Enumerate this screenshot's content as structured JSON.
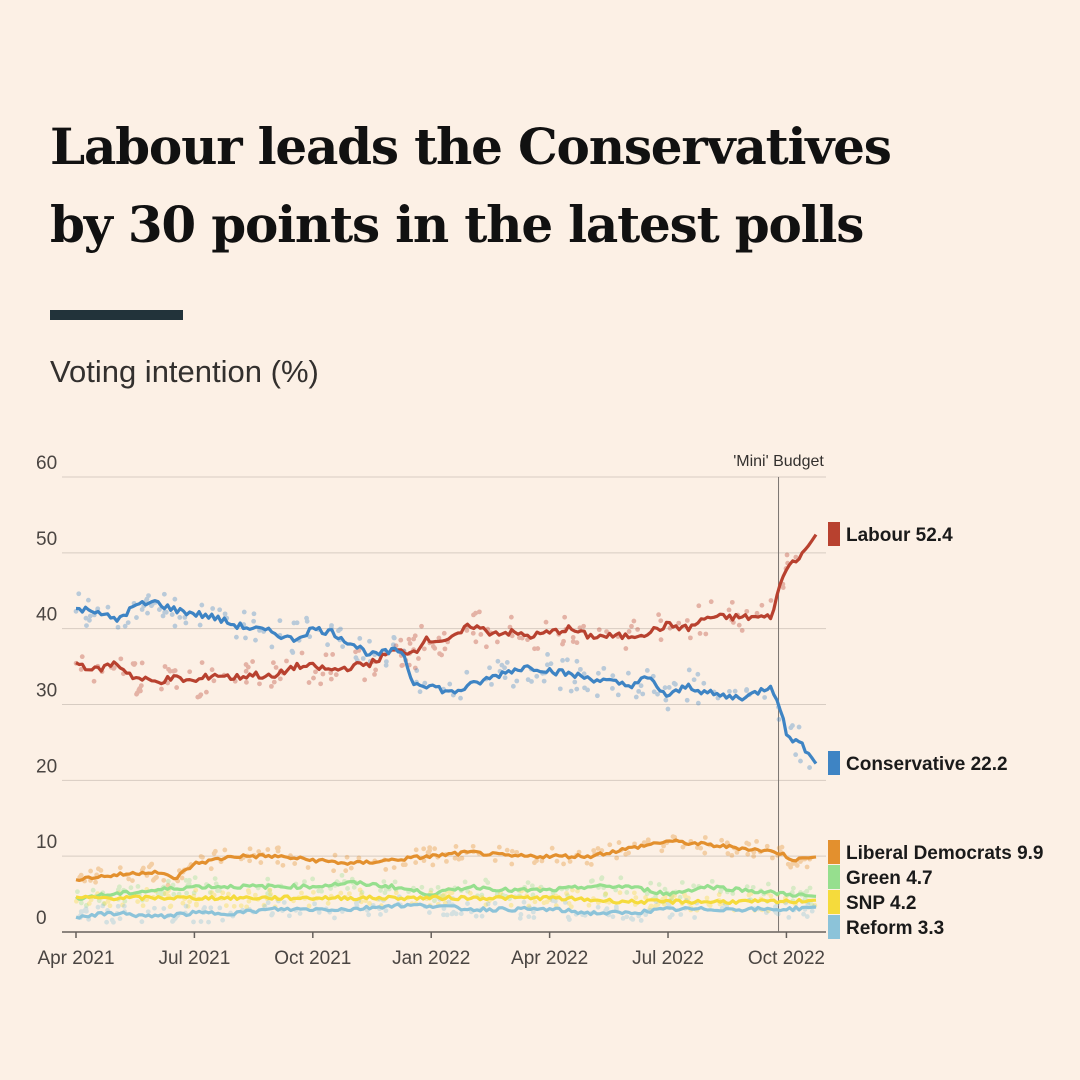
{
  "headline": {
    "line1": "Labour leads the Conservatives",
    "line2": "by 30 points in the latest polls"
  },
  "subtitle": "Voting intention (%)",
  "chart_data": {
    "type": "line",
    "title": "Labour leads the Conservatives by 30 points in the latest polls",
    "ylabel": "Voting intention (%)",
    "xlabel": "",
    "ylim": [
      0,
      60
    ],
    "yticks": [
      0,
      10,
      20,
      30,
      40,
      50,
      60
    ],
    "xlim": [
      0,
      18.8
    ],
    "xticks": [
      {
        "label": "Apr 2021",
        "x": 0
      },
      {
        "label": "Jul 2021",
        "x": 3
      },
      {
        "label": "Oct 2021",
        "x": 6
      },
      {
        "label": "Jan 2022",
        "x": 9
      },
      {
        "label": "Apr 2022",
        "x": 12
      },
      {
        "label": "Jul 2022",
        "x": 15
      },
      {
        "label": "Oct 2022",
        "x": 18
      }
    ],
    "grid": true,
    "annotations": [
      {
        "label": "'Mini' Budget",
        "x": 17.8
      }
    ],
    "x_unit": "months since Apr 2021",
    "series": [
      {
        "name": "Labour",
        "latest": 52.4,
        "label": "Labour 52.4",
        "color": "#b8412f",
        "points": [
          [
            0,
            35.5
          ],
          [
            0.5,
            34.5
          ],
          [
            1,
            35.5
          ],
          [
            1.5,
            33.5
          ],
          [
            2,
            33
          ],
          [
            2.5,
            33.5
          ],
          [
            3,
            33
          ],
          [
            3.5,
            34
          ],
          [
            4,
            33.5
          ],
          [
            4.5,
            34
          ],
          [
            5,
            33.5
          ],
          [
            5.5,
            35
          ],
          [
            6,
            35
          ],
          [
            6.5,
            34.5
          ],
          [
            7,
            35
          ],
          [
            7.5,
            35.5
          ],
          [
            8,
            37
          ],
          [
            8.6,
            37
          ],
          [
            8.8,
            38.5
          ],
          [
            9.5,
            38.5
          ],
          [
            10,
            40.5
          ],
          [
            10.5,
            39.5
          ],
          [
            11,
            39.5
          ],
          [
            11.5,
            39
          ],
          [
            12,
            39.5
          ],
          [
            12.5,
            40
          ],
          [
            13,
            39
          ],
          [
            13.5,
            39
          ],
          [
            14,
            39
          ],
          [
            14.5,
            39.5
          ],
          [
            15,
            40.5
          ],
          [
            15.5,
            40
          ],
          [
            16,
            41.5
          ],
          [
            16.5,
            41.5
          ],
          [
            17,
            41.5
          ],
          [
            17.6,
            41.5
          ],
          [
            17.8,
            45
          ],
          [
            18,
            48
          ],
          [
            18.3,
            49.5
          ],
          [
            18.5,
            50.5
          ],
          [
            18.75,
            52.4
          ]
        ]
      },
      {
        "name": "Conservative",
        "latest": 22.2,
        "label": "Conservative 22.2",
        "color": "#3e84c4",
        "points": [
          [
            0,
            42.5
          ],
          [
            0.5,
            42.5
          ],
          [
            1,
            41
          ],
          [
            1.5,
            43
          ],
          [
            2,
            43.5
          ],
          [
            2.5,
            42.5
          ],
          [
            3,
            42
          ],
          [
            3.5,
            41.5
          ],
          [
            4,
            40.5
          ],
          [
            4.5,
            40
          ],
          [
            5,
            39.5
          ],
          [
            5.5,
            38.5
          ],
          [
            6,
            40
          ],
          [
            6.5,
            39.5
          ],
          [
            7,
            38
          ],
          [
            7.5,
            36.5
          ],
          [
            8,
            37
          ],
          [
            8.3,
            37
          ],
          [
            8.5,
            33
          ],
          [
            9,
            32.5
          ],
          [
            9.5,
            31.5
          ],
          [
            10,
            32.5
          ],
          [
            10.5,
            33.5
          ],
          [
            11,
            34.5
          ],
          [
            11.5,
            35
          ],
          [
            12,
            34.5
          ],
          [
            12.5,
            34
          ],
          [
            13,
            33.5
          ],
          [
            13.5,
            33
          ],
          [
            14,
            32.5
          ],
          [
            14.5,
            33.5
          ],
          [
            15,
            31
          ],
          [
            15.5,
            32.5
          ],
          [
            16,
            31.5
          ],
          [
            16.5,
            31
          ],
          [
            17,
            31
          ],
          [
            17.6,
            32.5
          ],
          [
            17.8,
            30.5
          ],
          [
            18,
            26
          ],
          [
            18.3,
            25
          ],
          [
            18.5,
            24
          ],
          [
            18.75,
            22.2
          ]
        ]
      },
      {
        "name": "Liberal Democrats",
        "latest": 9.9,
        "label": "Liberal Democrats 9.9",
        "color": "#e3902e",
        "points": [
          [
            0,
            7
          ],
          [
            1,
            7.5
          ],
          [
            2,
            8
          ],
          [
            2.5,
            7
          ],
          [
            3,
            9
          ],
          [
            4,
            10
          ],
          [
            5,
            10
          ],
          [
            6,
            9.5
          ],
          [
            7,
            9
          ],
          [
            8,
            9.5
          ],
          [
            9,
            10
          ],
          [
            10,
            10.5
          ],
          [
            11,
            10
          ],
          [
            12,
            10
          ],
          [
            13,
            10
          ],
          [
            14,
            11
          ],
          [
            15,
            12
          ],
          [
            16,
            11.5
          ],
          [
            17,
            11
          ],
          [
            17.8,
            10.5
          ],
          [
            18.2,
            9.5
          ],
          [
            18.75,
            9.9
          ]
        ]
      },
      {
        "name": "Green",
        "latest": 4.7,
        "label": "Green 4.7",
        "color": "#96df8e",
        "points": [
          [
            0,
            4.5
          ],
          [
            1,
            5
          ],
          [
            2,
            5.5
          ],
          [
            3,
            6
          ],
          [
            4,
            6
          ],
          [
            5,
            6
          ],
          [
            6,
            6
          ],
          [
            7,
            6.5
          ],
          [
            8,
            6
          ],
          [
            9,
            5
          ],
          [
            10,
            6
          ],
          [
            11,
            5.5
          ],
          [
            12,
            5.5
          ],
          [
            13,
            6
          ],
          [
            14,
            6
          ],
          [
            15,
            5
          ],
          [
            16,
            6
          ],
          [
            17,
            5.5
          ],
          [
            18,
            5
          ],
          [
            18.75,
            4.7
          ]
        ]
      },
      {
        "name": "SNP",
        "latest": 4.2,
        "label": "SNP 4.2",
        "color": "#f5db3c",
        "points": [
          [
            0,
            4.5
          ],
          [
            2,
            4.5
          ],
          [
            4,
            4.5
          ],
          [
            6,
            4.5
          ],
          [
            8,
            4.5
          ],
          [
            10,
            4.5
          ],
          [
            12,
            4.5
          ],
          [
            14,
            4
          ],
          [
            16,
            4
          ],
          [
            18,
            4
          ],
          [
            18.75,
            4.2
          ]
        ]
      },
      {
        "name": "Reform",
        "latest": 3.3,
        "label": "Reform 3.3",
        "color": "#8cc3d9",
        "points": [
          [
            0,
            2
          ],
          [
            1,
            2.5
          ],
          [
            2,
            2
          ],
          [
            3,
            2.5
          ],
          [
            4,
            2.5
          ],
          [
            5,
            3
          ],
          [
            6,
            3
          ],
          [
            7,
            3
          ],
          [
            8,
            3.5
          ],
          [
            9,
            3.5
          ],
          [
            10,
            3
          ],
          [
            11,
            3
          ],
          [
            12,
            3
          ],
          [
            13,
            2.5
          ],
          [
            14,
            2.5
          ],
          [
            15,
            3
          ],
          [
            16,
            3
          ],
          [
            17,
            3
          ],
          [
            18,
            3
          ],
          [
            18.75,
            3.3
          ]
        ]
      }
    ]
  }
}
